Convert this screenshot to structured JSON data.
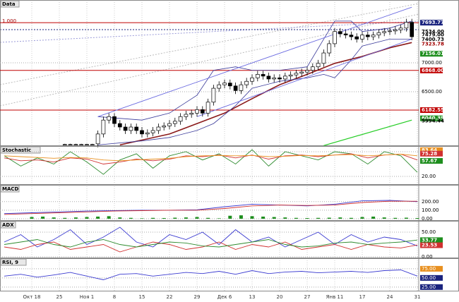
{
  "chart_data": [
    {
      "type": "candlestick",
      "title": "Data",
      "left_label": "1.000",
      "categories": [
        "Окт 18",
        null,
        null,
        null,
        null,
        "25",
        null,
        null,
        null,
        null,
        "Ноя 1",
        null,
        null,
        null,
        null,
        "8",
        null,
        null,
        null,
        null,
        "15",
        null,
        null,
        null,
        null,
        "22",
        null,
        null,
        null,
        null,
        "29",
        null,
        null,
        null,
        null,
        "Дек 6",
        null,
        null,
        null,
        null,
        "13",
        null,
        null,
        null,
        null,
        "20",
        null,
        null,
        null,
        null,
        "27",
        null,
        null,
        null,
        null,
        "Янв 11",
        null,
        null,
        null,
        null,
        "17",
        null,
        null,
        null,
        null,
        "24",
        null,
        null,
        null,
        null,
        "31"
      ],
      "open": [
        null,
        null,
        null,
        null,
        null,
        null,
        5590,
        5590,
        5590,
        5590,
        5590,
        5590,
        5600,
        5770,
        6010,
        6070,
        5950,
        5890,
        5830,
        5890,
        5830,
        5770,
        5790,
        5830,
        5890,
        5910,
        5950,
        5990,
        6070,
        6110,
        6130,
        6190,
        6130,
        6320,
        6560,
        6620,
        6650,
        6600,
        6520,
        6620,
        6680,
        6740,
        6800,
        6770,
        6720,
        6740,
        6720,
        6770,
        6790,
        6820,
        6840,
        6870,
        6930,
        6990,
        7170,
        7330,
        7540,
        7500,
        7480,
        7450,
        7410,
        7480,
        7450,
        7480,
        7520,
        7540,
        7550,
        7570,
        7600,
        7700,
        null
      ],
      "high": [
        null,
        null,
        null,
        null,
        null,
        null,
        5600,
        5600,
        5600,
        5600,
        5600,
        5600,
        5830,
        6070,
        6130,
        6130,
        6010,
        5950,
        5950,
        5950,
        5890,
        5850,
        5890,
        5950,
        5970,
        6010,
        6050,
        6130,
        6170,
        6190,
        6250,
        6250,
        6380,
        6620,
        6680,
        6710,
        6710,
        6660,
        6680,
        6740,
        6800,
        6860,
        6860,
        6830,
        6800,
        6800,
        6830,
        6850,
        6880,
        6900,
        6930,
        6990,
        7050,
        7230,
        7390,
        7600,
        7600,
        7560,
        7540,
        7510,
        7540,
        7540,
        7540,
        7580,
        7600,
        7610,
        7630,
        7660,
        7760,
        7760,
        null
      ],
      "low": [
        null,
        null,
        null,
        null,
        null,
        null,
        5580,
        5580,
        5580,
        5580,
        5580,
        5580,
        5540,
        5710,
        5950,
        5890,
        5830,
        5770,
        5770,
        5770,
        5710,
        5710,
        5730,
        5770,
        5830,
        5850,
        5890,
        5930,
        6010,
        6050,
        6070,
        6070,
        6070,
        6260,
        6500,
        6560,
        6540,
        6460,
        6460,
        6560,
        6620,
        6680,
        6710,
        6660,
        6660,
        6660,
        6660,
        6710,
        6730,
        6760,
        6780,
        6810,
        6870,
        6930,
        7110,
        7270,
        7440,
        7420,
        7390,
        7350,
        7350,
        7390,
        7390,
        7420,
        7460,
        7480,
        7490,
        7510,
        7540,
        7390,
        null
      ],
      "close": [
        null,
        null,
        null,
        null,
        null,
        null,
        5590,
        5590,
        5590,
        5590,
        5590,
        5590,
        5770,
        6010,
        6070,
        5950,
        5890,
        5830,
        5890,
        5830,
        5770,
        5790,
        5830,
        5890,
        5910,
        5950,
        5990,
        6070,
        6110,
        6130,
        6190,
        6130,
        6320,
        6560,
        6620,
        6650,
        6600,
        6520,
        6620,
        6680,
        6740,
        6800,
        6770,
        6720,
        6740,
        6720,
        6770,
        6790,
        6820,
        6840,
        6870,
        6930,
        6990,
        7170,
        7330,
        7540,
        7500,
        7480,
        7450,
        7410,
        7480,
        7450,
        7480,
        7520,
        7540,
        7550,
        7570,
        7600,
        7700,
        7450,
        null
      ],
      "series": [
        {
          "color": "#8b1a1a",
          "width": 1.6,
          "x": [
            16,
            25,
            30,
            35,
            40,
            45,
            50,
            55,
            60,
            65,
            69
          ],
          "values": [
            5580,
            5770,
            5950,
            6130,
            6380,
            6620,
            6800,
            6990,
            7110,
            7260,
            7350
          ]
        },
        {
          "color": "#3a3a9a",
          "width": 0.8,
          "x": [
            12,
            20,
            25,
            30,
            33,
            37,
            40,
            45,
            50,
            53,
            55,
            58,
            60,
            65,
            69
          ],
          "values": [
            6070,
            6010,
            6130,
            6440,
            6870,
            6930,
            6870,
            6870,
            6930,
            7410,
            7720,
            7720,
            7540,
            7600,
            7720
          ]
        },
        {
          "color": "#3a3a9a",
          "width": 0.8,
          "x": [
            12,
            20,
            25,
            30,
            33,
            37,
            40,
            45,
            50,
            53,
            55,
            58,
            60,
            65,
            69
          ],
          "values": [
            5580,
            5650,
            5710,
            5830,
            5950,
            6260,
            6560,
            6680,
            6740,
            6800,
            6740,
            7050,
            7290,
            7410,
            7410
          ]
        },
        {
          "color": "#22cc22",
          "width": 1.2,
          "x": [
            53,
            69
          ],
          "values": [
            5570,
            6010
          ]
        },
        {
          "color": "#6a6ae0",
          "width": 0.9,
          "x": [
            12,
            69
          ],
          "values": [
            6070,
            7960
          ]
        },
        {
          "color": "#6a6ae0",
          "width": 0.9,
          "x": [
            30,
            69
          ],
          "values": [
            6070,
            7410
          ]
        }
      ],
      "ylim": [
        5561,
        8024
      ],
      "yticks": [
        {
          "value": 6500,
          "label": "6500.00"
        },
        {
          "value": 7000,
          "label": "7000.00"
        }
      ],
      "markers": [
        {
          "value": 7693.77,
          "label": "7693.77",
          "bg": "#1a237e",
          "hline": true,
          "line_color": "#c00000"
        },
        {
          "value": 7534.0,
          "label": "7534.00"
        },
        {
          "value": 7479.0,
          "label": "7479.00"
        },
        {
          "value": 7400.73,
          "label": "7400.73"
        },
        {
          "value": 7323.78,
          "label": "7323.78",
          "color": "#a00000"
        },
        {
          "value": 7156.01,
          "label": "7156.01",
          "bg": "#1e8e1e"
        },
        {
          "value": 6868.0,
          "label": "6868.00",
          "bg": "#c00000",
          "hline": true,
          "line_color": "#c00000"
        },
        {
          "value": 6182.55,
          "label": "6182.55",
          "bg": "#c00000",
          "hline": true,
          "line_color": "#c00000"
        },
        {
          "value": 6040.39,
          "label": "6040.39",
          "bg": "#1e8e1e"
        },
        {
          "value": 5994.44,
          "label": "5994.44"
        }
      ]
    },
    {
      "type": "line",
      "title": "Stochastic",
      "x": [
        -5,
        -2,
        1,
        4,
        7,
        10,
        13,
        16,
        19,
        22,
        25,
        28,
        31,
        34,
        37,
        40,
        43,
        46,
        49,
        52,
        55,
        58,
        61,
        64,
        67,
        70
      ],
      "series": [
        {
          "color": "#2e8b2e",
          "values": [
            70,
            45,
            65,
            50,
            80,
            55,
            25,
            60,
            75,
            40,
            70,
            80,
            60,
            75,
            50,
            85,
            45,
            80,
            70,
            60,
            80,
            75,
            50,
            80,
            70,
            30
          ]
        },
        {
          "color": "#d03030",
          "values": [
            65,
            58,
            60,
            55,
            65,
            62,
            50,
            55,
            62,
            58,
            62,
            70,
            68,
            72,
            65,
            72,
            62,
            70,
            72,
            68,
            72,
            75,
            65,
            72,
            74,
            60
          ]
        },
        {
          "color": "#e89020",
          "values": [
            70,
            68,
            66,
            64,
            66,
            65,
            60,
            58,
            60,
            62,
            64,
            68,
            70,
            71,
            70,
            71,
            68,
            69,
            71,
            70,
            72,
            73,
            70,
            72,
            74,
            70
          ]
        }
      ],
      "ylim": [
        0,
        92
      ],
      "yticks": [
        {
          "value": 20,
          "label": "20.00"
        },
        {
          "value": 80,
          "label": "80.00"
        }
      ],
      "markers": [
        {
          "value": 83.64,
          "label": "83.64",
          "bg": "#e89020"
        },
        {
          "value": 75.28,
          "label": "75.28",
          "bg": "#d03030"
        },
        {
          "value": 57.67,
          "label": "57.67",
          "bg": "#1e8e1e"
        }
      ]
    },
    {
      "type": "macd",
      "title": "MACD",
      "x": [
        -5,
        0,
        5,
        10,
        15,
        20,
        25,
        30,
        35,
        40,
        45,
        50,
        55,
        60,
        65,
        70
      ],
      "series": [
        {
          "color": "#3a3ad0",
          "values": [
            60,
            70,
            80,
            90,
            95,
            100,
            100,
            105,
            140,
            170,
            160,
            150,
            170,
            210,
            215,
            200
          ]
        },
        {
          "color": "#d03030",
          "values": [
            50,
            60,
            70,
            80,
            90,
            95,
            100,
            100,
            120,
            150,
            160,
            155,
            160,
            190,
            205,
            205
          ]
        }
      ],
      "bars": {
        "color": "#1e8e1e",
        "x": [
          0,
          2,
          4,
          6,
          8,
          10,
          12,
          14,
          16,
          18,
          20,
          22,
          24,
          26,
          28,
          30,
          32,
          34,
          36,
          38,
          40,
          42,
          44,
          46,
          48,
          50,
          52,
          54,
          56,
          58,
          60,
          62,
          64,
          66,
          68,
          70
        ],
        "values": [
          20,
          25,
          15,
          10,
          15,
          20,
          25,
          30,
          15,
          10,
          5,
          10,
          8,
          12,
          15,
          20,
          10,
          5,
          35,
          40,
          30,
          25,
          20,
          15,
          10,
          8,
          10,
          12,
          15,
          10,
          20,
          25,
          15,
          10,
          12,
          8
        ]
      },
      "ylim": [
        -10,
        380
      ],
      "yticks": [
        {
          "value": 0,
          "label": "0.00"
        },
        {
          "value": 100,
          "label": "100.00"
        },
        {
          "value": 200,
          "label": "200.00"
        }
      ]
    },
    {
      "type": "line",
      "title": "ADX",
      "x": [
        -5,
        -2,
        1,
        4,
        7,
        10,
        13,
        16,
        19,
        22,
        25,
        28,
        31,
        34,
        37,
        40,
        43,
        46,
        49,
        52,
        55,
        58,
        61,
        64,
        67,
        70
      ],
      "series": [
        {
          "color": "#3a3ad0",
          "values": [
            30,
            45,
            20,
            35,
            55,
            25,
            40,
            60,
            30,
            20,
            45,
            35,
            50,
            25,
            55,
            30,
            40,
            20,
            35,
            50,
            25,
            45,
            30,
            40,
            35,
            22
          ]
        },
        {
          "color": "#d03030",
          "values": [
            20,
            15,
            25,
            30,
            15,
            20,
            25,
            10,
            20,
            30,
            25,
            15,
            20,
            30,
            15,
            25,
            20,
            30,
            15,
            20,
            25,
            15,
            25,
            20,
            18,
            24
          ]
        },
        {
          "color": "#2e8b2e",
          "values": [
            25,
            30,
            35,
            25,
            20,
            30,
            35,
            25,
            20,
            25,
            30,
            28,
            22,
            20,
            25,
            30,
            35,
            25,
            20,
            22,
            28,
            30,
            25,
            28,
            30,
            34
          ]
        }
      ],
      "ylim": [
        0,
        70
      ],
      "yticks": [
        {
          "value": 0,
          "label": "0.00"
        },
        {
          "value": 50,
          "label": "50.00"
        }
      ],
      "markers": [
        {
          "value": 33.77,
          "label": "33.77",
          "bg": "#1e8e1e"
        },
        {
          "value": 23.53,
          "label": "23.53",
          "bg": "#d03030"
        }
      ]
    },
    {
      "type": "line",
      "title": "RSI, 9",
      "x": [
        -5,
        -2,
        1,
        4,
        7,
        10,
        13,
        16,
        19,
        22,
        25,
        28,
        31,
        34,
        37,
        40,
        43,
        46,
        49,
        52,
        55,
        58,
        61,
        64,
        67,
        70
      ],
      "series": [
        {
          "color": "#3a3ad0",
          "values": [
            55,
            60,
            52,
            58,
            65,
            55,
            45,
            60,
            62,
            55,
            60,
            65,
            62,
            68,
            60,
            70,
            62,
            66,
            68,
            64,
            66,
            68,
            65,
            70,
            72,
            55
          ]
        }
      ],
      "ylim": [
        15,
        98
      ],
      "yticks": [
        {
          "value": 25,
          "label": "25.00"
        },
        {
          "value": 50,
          "label": "50.00"
        },
        {
          "value": 75,
          "label": "75.00"
        }
      ],
      "tick_bg": [
        "#1a237e",
        "#1a237e",
        "#e89020"
      ]
    }
  ]
}
